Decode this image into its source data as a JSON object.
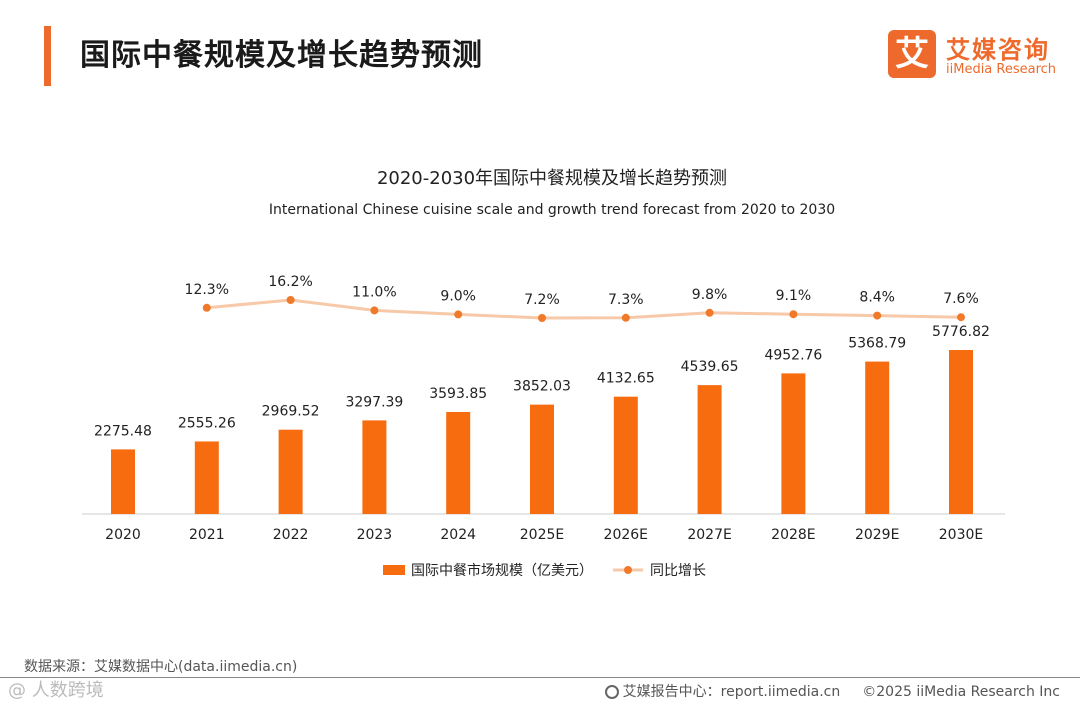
{
  "header": {
    "title": "国际中餐规模及增长趋势预测",
    "logo_mark": "艾",
    "logo_cn": "艾媒咨询",
    "logo_en": "iiMedia Research"
  },
  "chart_data": {
    "type": "bar",
    "title": "2020-2030年国际中餐规模及增长趋势预测",
    "subtitle": "International Chinese cuisine scale and growth trend forecast from 2020 to 2030",
    "categories": [
      "2020",
      "2021",
      "2022",
      "2023",
      "2024",
      "2025E",
      "2026E",
      "2027E",
      "2028E",
      "2029E",
      "2030E"
    ],
    "series": [
      {
        "name": "国际中餐市场规模（亿美元）",
        "type": "bar",
        "color": "#f66c0f",
        "values": [
          2275.48,
          2555.26,
          2969.52,
          3297.39,
          3593.85,
          3852.03,
          4132.65,
          4539.65,
          4952.76,
          5368.79,
          5776.82
        ],
        "labels": [
          "2275.48",
          "2555.26",
          "2969.52",
          "3297.39",
          "3593.85",
          "3852.03",
          "4132.65",
          "4539.65",
          "4952.76",
          "5368.79",
          "5776.82"
        ]
      },
      {
        "name": "同比增长",
        "type": "line",
        "color": "#f7c9a8",
        "marker_color": "#f07a2a",
        "values": [
          null,
          12.3,
          16.2,
          11.0,
          9.0,
          7.2,
          7.3,
          9.8,
          9.1,
          8.4,
          7.6
        ],
        "labels": [
          null,
          "12.3%",
          "16.2%",
          "11.0%",
          "9.0%",
          "7.2%",
          "7.3%",
          "9.8%",
          "9.1%",
          "8.4%",
          "7.6%"
        ]
      }
    ],
    "legend": "bottom"
  },
  "footer": {
    "source": "数据来源：艾媒数据中心(data.iimedia.cn)",
    "watermark": "@ 人数跨境",
    "report": "艾媒报告中心：report.iimedia.cn",
    "copyright": "©2025  iiMedia Research  Inc"
  }
}
